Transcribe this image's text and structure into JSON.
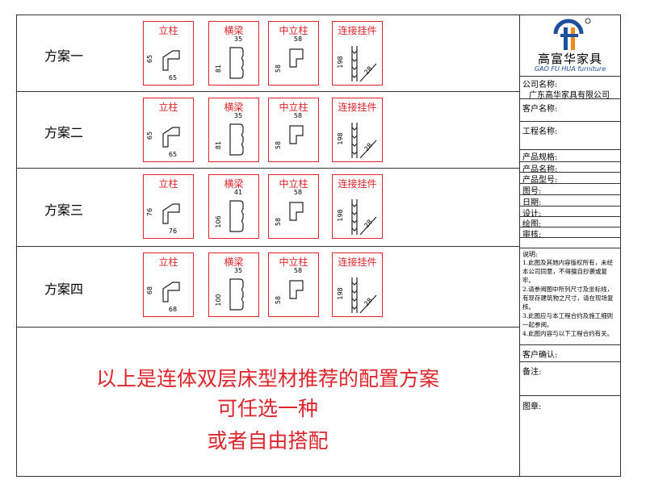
{
  "schemes": [
    {
      "label": "方案一",
      "items": [
        {
          "title": "立柱",
          "dims": [
            "65",
            "65"
          ]
        },
        {
          "title": "横梁",
          "dims": [
            "35",
            "81"
          ]
        },
        {
          "title": "中立柱",
          "dims": [
            "58",
            "58"
          ]
        },
        {
          "title": "连接挂件",
          "dims": [
            "198",
            "28"
          ]
        }
      ]
    },
    {
      "label": "方案二",
      "items": [
        {
          "title": "立柱",
          "dims": [
            "65",
            "65"
          ]
        },
        {
          "title": "横梁",
          "dims": [
            "35",
            "81"
          ]
        },
        {
          "title": "中立柱",
          "dims": [
            "58",
            "58"
          ]
        },
        {
          "title": "连接挂件",
          "dims": [
            "198",
            "28"
          ]
        }
      ]
    },
    {
      "label": "方案三",
      "items": [
        {
          "title": "立柱",
          "dims": [
            "76",
            "76"
          ]
        },
        {
          "title": "横梁",
          "dims": [
            "41",
            "106"
          ]
        },
        {
          "title": "中立柱",
          "dims": [
            "58",
            "58"
          ]
        },
        {
          "title": "连接挂件",
          "dims": [
            "198",
            "28"
          ]
        }
      ]
    },
    {
      "label": "方案四",
      "items": [
        {
          "title": "立柱",
          "dims": [
            "68",
            "68"
          ]
        },
        {
          "title": "横梁",
          "dims": [
            "35",
            "100"
          ]
        },
        {
          "title": "中立柱",
          "dims": [
            "58",
            "58"
          ]
        },
        {
          "title": "连接挂件",
          "dims": [
            "198",
            "28"
          ]
        }
      ]
    }
  ],
  "summary": [
    "以上是连体双层床型材推荐的配置方案",
    "可任选一种",
    "或者自由搭配"
  ],
  "title_block": {
    "brand": "高富华家具",
    "brand_en": "GAO FU HUA furniture",
    "company_label": "公司名称:",
    "company": "广东高华家具有限公司",
    "fields": [
      "客户名称:",
      "工程名称:",
      "产品规格:",
      "产品名称:",
      "产品型号:",
      "图号:",
      "日期:",
      "设计:",
      "绘图:",
      "审核:"
    ],
    "notes_title": "说明:",
    "notes": [
      "1.此图及其她内容版权所有，未经本公司同意，不得擅自抄袭或复牢。",
      "2.请参阅图中所列尺寸及坐标线，有现存建筑物之尺寸，请在现场复核。",
      "3.此图应与本工程合约及施工细则一起参阅。",
      "4.此图内容与以下工程合约有关。"
    ],
    "confirm": "客户确认:",
    "remark": "备注:",
    "stamp": "图章:"
  }
}
